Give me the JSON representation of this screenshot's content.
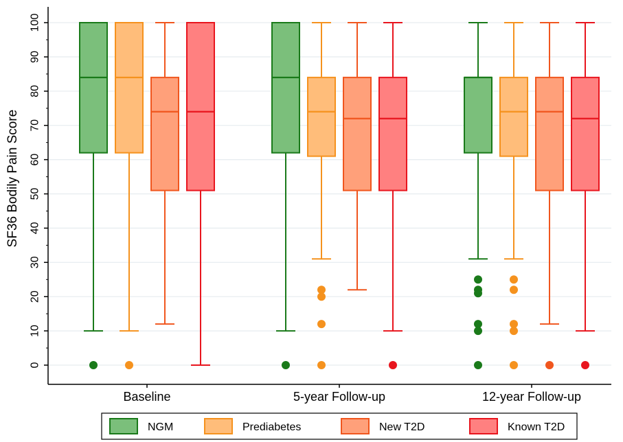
{
  "chart_data": {
    "type": "boxplot",
    "title": "",
    "xlabel": "",
    "ylabel": "SF36 Bodily Pain Score",
    "ylim": [
      0,
      100
    ],
    "yticks": [
      0,
      10,
      20,
      30,
      40,
      50,
      60,
      70,
      80,
      90,
      100
    ],
    "categories": [
      "Baseline",
      "5-year Follow-up",
      "12-year Follow-up"
    ],
    "grid": true,
    "legend_position": "bottom",
    "series": [
      {
        "name": "NGM",
        "color": "#1a7a1a",
        "fill": "#7bbf7b",
        "boxes": [
          {
            "q1": 62,
            "median": 84,
            "q3": 100,
            "whisker_low": 10,
            "whisker_high": 100,
            "outliers": [
              0
            ]
          },
          {
            "q1": 62,
            "median": 84,
            "q3": 100,
            "whisker_low": 10,
            "whisker_high": 100,
            "outliers": [
              0
            ]
          },
          {
            "q1": 62,
            "median": 84,
            "q3": 84,
            "whisker_low": 31,
            "whisker_high": 100,
            "outliers": [
              0,
              10,
              12,
              21,
              22,
              25
            ]
          }
        ]
      },
      {
        "name": "Prediabetes",
        "color": "#f5921e",
        "fill": "#ffbd7a",
        "boxes": [
          {
            "q1": 62,
            "median": 84,
            "q3": 100,
            "whisker_low": 10,
            "whisker_high": 100,
            "outliers": [
              0
            ]
          },
          {
            "q1": 61,
            "median": 74,
            "q3": 84,
            "whisker_low": 31,
            "whisker_high": 100,
            "outliers": [
              0,
              12,
              20,
              22
            ]
          },
          {
            "q1": 61,
            "median": 74,
            "q3": 84,
            "whisker_low": 31,
            "whisker_high": 100,
            "outliers": [
              0,
              10,
              12,
              22,
              25
            ]
          }
        ]
      },
      {
        "name": "New T2D",
        "color": "#f0561e",
        "fill": "#ffa07a",
        "boxes": [
          {
            "q1": 51,
            "median": 74,
            "q3": 84,
            "whisker_low": 12,
            "whisker_high": 100,
            "outliers": []
          },
          {
            "q1": 51,
            "median": 72,
            "q3": 84,
            "whisker_low": 22,
            "whisker_high": 100,
            "outliers": []
          },
          {
            "q1": 51,
            "median": 74,
            "q3": 84,
            "whisker_low": 12,
            "whisker_high": 100,
            "outliers": [
              0
            ]
          }
        ]
      },
      {
        "name": "Known T2D",
        "color": "#e8151e",
        "fill": "#ff8080",
        "boxes": [
          {
            "q1": 51,
            "median": 74,
            "q3": 100,
            "whisker_low": 0,
            "whisker_high": 100,
            "outliers": []
          },
          {
            "q1": 51,
            "median": 72,
            "q3": 84,
            "whisker_low": 10,
            "whisker_high": 100,
            "outliers": [
              0
            ]
          },
          {
            "q1": 51,
            "median": 72,
            "q3": 84,
            "whisker_low": 10,
            "whisker_high": 100,
            "outliers": [
              0
            ]
          }
        ]
      }
    ]
  }
}
